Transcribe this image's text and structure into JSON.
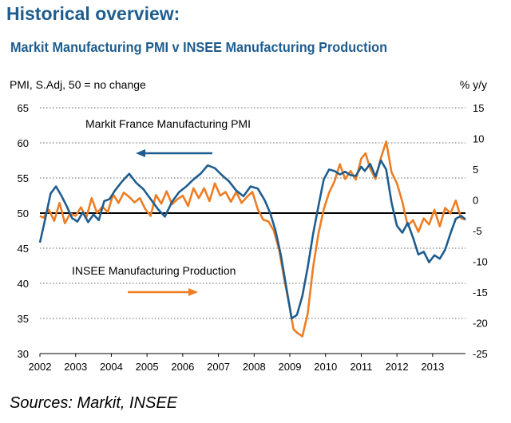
{
  "header": {
    "title": "Historical overview:",
    "subtitle": "Markit Manufacturing PMI v INSEE Manufacturing Production"
  },
  "footer": {
    "source": "Sources: Markit, INSEE"
  },
  "colors": {
    "pmi": "#1f5d8f",
    "production": "#ee7d23",
    "grid": "#666666",
    "baseline": "#000000"
  },
  "chart_data": {
    "type": "line",
    "title": "Markit Manufacturing PMI v INSEE Manufacturing Production",
    "left_axis_label": "PMI, S.Adj, 50 = no change",
    "right_axis_label": "% y/y",
    "ylim_left": [
      30,
      65
    ],
    "ylim_right": [
      -25,
      15
    ],
    "left_ticks": [
      "30",
      "35",
      "40",
      "45",
      "50",
      "55",
      "60",
      "65"
    ],
    "right_ticks": [
      "-25",
      "-20",
      "-15",
      "-10",
      "-5",
      "0",
      "5",
      "10",
      "15"
    ],
    "x_ticks": [
      "2002",
      "2003",
      "2004",
      "2005",
      "2006",
      "2007",
      "2008",
      "2009",
      "2010",
      "2011",
      "2012",
      "2013"
    ],
    "xlim": [
      2002.0,
      2013.92
    ],
    "baseline_pmi": 50,
    "legend": {
      "pmi_label": "Markit France Manufacturing PMI",
      "production_label": "INSEE Manufacturing Production"
    },
    "series": [
      {
        "name": "Markit France Manufacturing PMI",
        "axis": "left",
        "x": [
          2002.0,
          2002.15,
          2002.3,
          2002.45,
          2002.6,
          2002.75,
          2002.9,
          2003.05,
          2003.2,
          2003.35,
          2003.5,
          2003.65,
          2003.8,
          2003.95,
          2004.1,
          2004.3,
          2004.5,
          2004.7,
          2004.9,
          2005.1,
          2005.3,
          2005.5,
          2005.7,
          2005.9,
          2006.1,
          2006.3,
          2006.5,
          2006.7,
          2006.9,
          2007.1,
          2007.3,
          2007.5,
          2007.7,
          2007.9,
          2008.1,
          2008.3,
          2008.45,
          2008.6,
          2008.75,
          2008.9,
          2009.05,
          2009.2,
          2009.35,
          2009.5,
          2009.65,
          2009.8,
          2009.95,
          2010.1,
          2010.25,
          2010.4,
          2010.55,
          2010.7,
          2010.85,
          2011.0,
          2011.1,
          2011.25,
          2011.4,
          2011.55,
          2011.7,
          2011.85,
          2012.0,
          2012.15,
          2012.3,
          2012.45,
          2012.6,
          2012.75,
          2012.9,
          2013.05,
          2013.2,
          2013.35,
          2013.5,
          2013.65,
          2013.8,
          2013.92
        ],
        "values": [
          45.8,
          49.2,
          52.8,
          53.8,
          52.5,
          51.0,
          49.3,
          48.8,
          50.1,
          48.7,
          49.8,
          49.0,
          51.7,
          52.0,
          53.2,
          54.5,
          55.6,
          54.3,
          53.4,
          52.0,
          50.6,
          49.5,
          51.6,
          53.0,
          53.8,
          54.8,
          55.6,
          56.8,
          56.4,
          55.4,
          54.5,
          53.2,
          52.4,
          53.8,
          53.5,
          51.8,
          50.0,
          47.5,
          44.0,
          39.5,
          35.0,
          35.5,
          38.2,
          42.3,
          47.0,
          51.0,
          54.8,
          56.2,
          56.0,
          55.5,
          55.9,
          55.4,
          55.3,
          56.6,
          56.0,
          57.0,
          55.2,
          57.5,
          56.2,
          51.5,
          48.2,
          47.2,
          48.6,
          46.5,
          44.1,
          44.5,
          43.0,
          44.0,
          43.5,
          44.8,
          47.1,
          49.2,
          49.6,
          49.1
        ]
      },
      {
        "name": "INSEE Manufacturing Production",
        "axis": "right",
        "x": [
          2002.0,
          2002.1,
          2002.25,
          2002.4,
          2002.55,
          2002.7,
          2002.85,
          2003.0,
          2003.15,
          2003.3,
          2003.45,
          2003.6,
          2003.75,
          2003.9,
          2004.05,
          2004.2,
          2004.35,
          2004.5,
          2004.65,
          2004.8,
          2004.95,
          2005.1,
          2005.25,
          2005.4,
          2005.55,
          2005.7,
          2005.85,
          2006.0,
          2006.15,
          2006.3,
          2006.45,
          2006.6,
          2006.75,
          2006.9,
          2007.05,
          2007.2,
          2007.35,
          2007.5,
          2007.65,
          2007.8,
          2007.95,
          2008.1,
          2008.25,
          2008.4,
          2008.55,
          2008.7,
          2008.85,
          2009.0,
          2009.1,
          2009.2,
          2009.35,
          2009.5,
          2009.65,
          2009.8,
          2009.95,
          2010.1,
          2010.25,
          2010.4,
          2010.55,
          2010.7,
          2010.85,
          2011.0,
          2011.12,
          2011.25,
          2011.4,
          2011.55,
          2011.7,
          2011.85,
          2012.0,
          2012.15,
          2012.3,
          2012.45,
          2012.6,
          2012.75,
          2012.9,
          2013.05,
          2013.2,
          2013.35,
          2013.5,
          2013.65,
          2013.8,
          2013.92
        ],
        "values": [
          -2.6,
          -2.9,
          -1.6,
          -3.4,
          -0.5,
          -3.8,
          -2.2,
          -2.6,
          -1.2,
          -2.9,
          0.3,
          -2.1,
          -1.1,
          -2.0,
          0.9,
          -0.5,
          1.2,
          0.5,
          -0.4,
          0.3,
          -1.5,
          -2.6,
          0.8,
          -0.6,
          1.4,
          -0.7,
          0.1,
          0.7,
          -1.0,
          1.9,
          0.3,
          1.9,
          -0.2,
          2.7,
          0.7,
          1.3,
          -0.3,
          1.3,
          -0.5,
          0.5,
          1.3,
          -1.5,
          -3.2,
          -3.5,
          -5.0,
          -8.1,
          -13.1,
          -17.5,
          -21.0,
          -21.6,
          -22.2,
          -18.5,
          -11.0,
          -5.5,
          -1.5,
          1.2,
          3.0,
          5.8,
          3.4,
          4.7,
          3.3,
          6.7,
          7.6,
          5.1,
          3.4,
          6.8,
          9.5,
          4.5,
          2.7,
          -0.3,
          -4.2,
          -3.3,
          -5.2,
          -3.0,
          -4.0,
          -1.6,
          -4.3,
          -1.3,
          -2.2,
          -0.1,
          -3.0,
          -3.2
        ]
      }
    ]
  }
}
